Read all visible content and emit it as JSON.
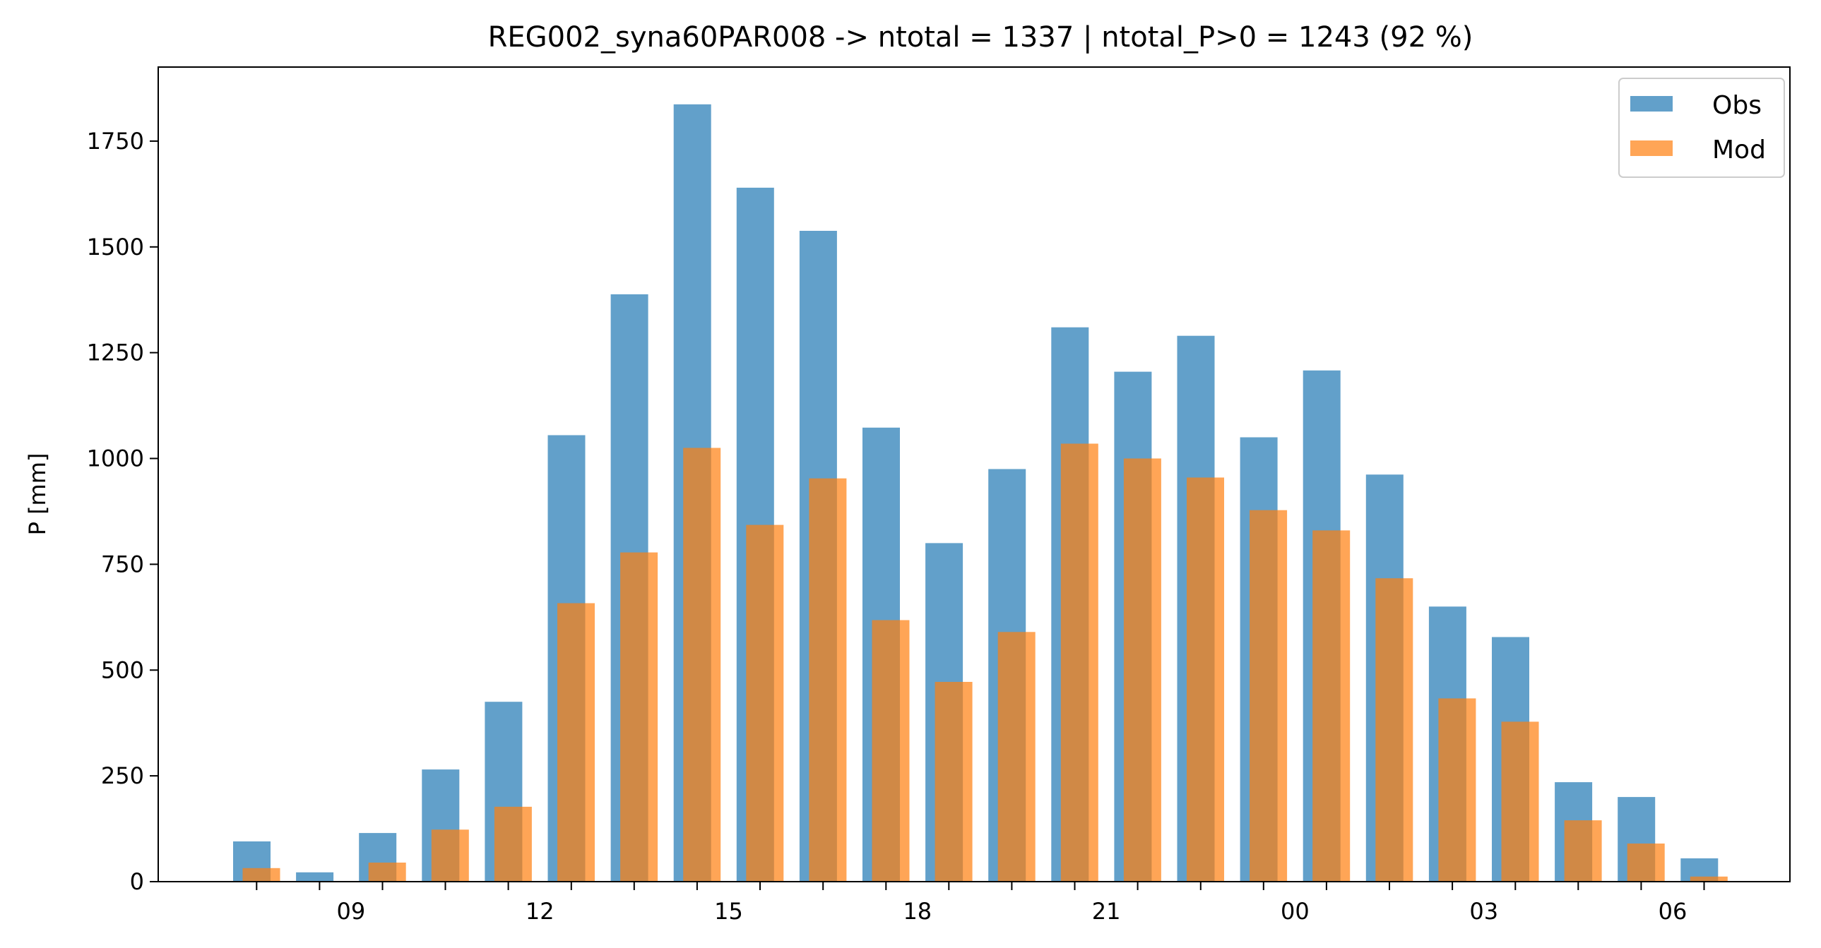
{
  "chart_data": {
    "type": "bar",
    "title": "REG002_syna60PAR008 -> ntotal = 1337 | ntotal_P>0 = 1243 (92 %)",
    "ylabel": "P [mm]",
    "xlabel": "",
    "ylim": [
      0,
      1925
    ],
    "yticks": [
      0,
      250,
      500,
      750,
      1000,
      1250,
      1500,
      1750
    ],
    "hours": [
      8,
      9,
      10,
      11,
      12,
      13,
      14,
      15,
      16,
      17,
      18,
      19,
      20,
      21,
      22,
      23,
      0,
      1,
      2,
      3,
      4,
      5,
      6,
      7
    ],
    "xtick_labels": [
      {
        "hour_index": 1,
        "label": "09"
      },
      {
        "hour_index": 4,
        "label": "12"
      },
      {
        "hour_index": 7,
        "label": "15"
      },
      {
        "hour_index": 10,
        "label": "18"
      },
      {
        "hour_index": 13,
        "label": "21"
      },
      {
        "hour_index": 16,
        "label": "00"
      },
      {
        "hour_index": 19,
        "label": "03"
      },
      {
        "hour_index": 22,
        "label": "06"
      }
    ],
    "series": [
      {
        "name": "Obs",
        "color": "#1f77b4",
        "values": [
          95,
          22,
          115,
          265,
          425,
          1055,
          1388,
          1837,
          1640,
          1538,
          1073,
          800,
          975,
          1310,
          1205,
          1290,
          1050,
          1208,
          962,
          650,
          578,
          235,
          200,
          55
        ]
      },
      {
        "name": "Mod",
        "color": "#ff7f0e",
        "values": [
          32,
          0,
          45,
          123,
          177,
          658,
          778,
          1025,
          843,
          953,
          618,
          472,
          590,
          1035,
          1000,
          955,
          878,
          830,
          717,
          433,
          378,
          145,
          90,
          12
        ]
      }
    ],
    "legend": "top-right",
    "grid": false
  }
}
